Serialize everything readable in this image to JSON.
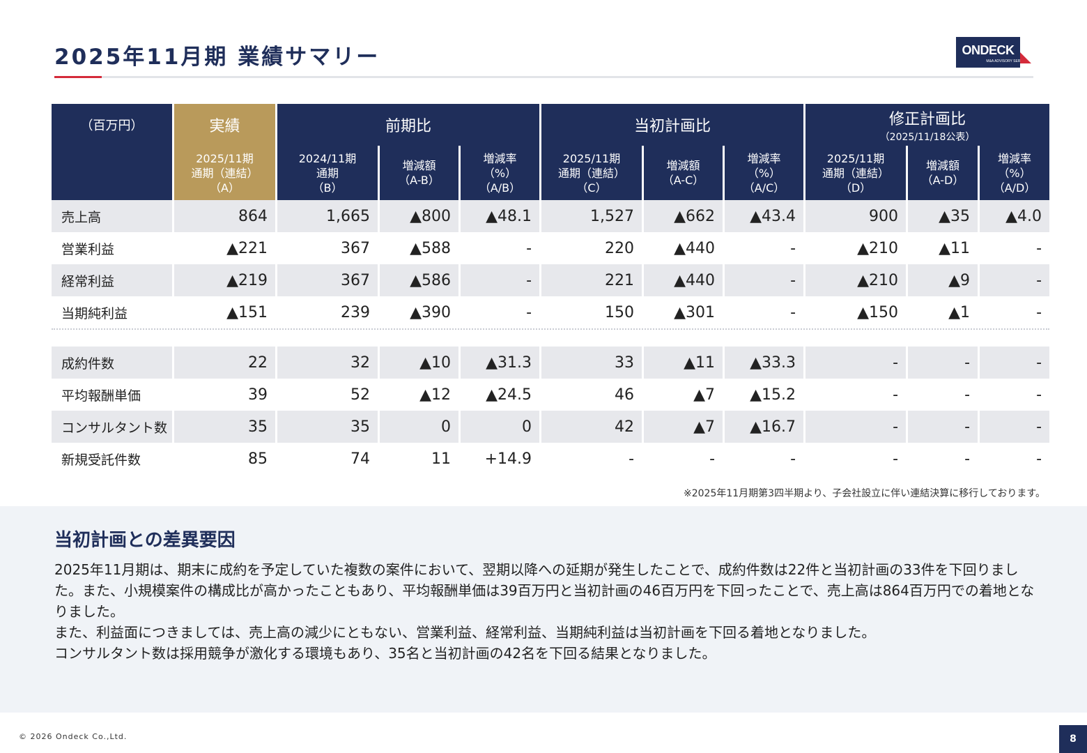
{
  "page": {
    "title": "2025年11月期 業績サマリー",
    "logo_text": "ONDECK",
    "logo_tagline": "M&A ADVISORY SERVICE",
    "copyright": "© 2026 Ondeck Co.,Ltd.",
    "page_number": "8"
  },
  "table": {
    "unit": "（百万円）",
    "groups": {
      "actual": "実績",
      "yoy": "前期比",
      "initial_plan": "当初計画比",
      "revised_plan": "修正計画比",
      "revised_plan_note": "（2025/11/18公表）"
    },
    "subheaders": [
      [
        "2025/11期",
        "通期（連結）",
        "（A）"
      ],
      [
        "2024/11期",
        "通期",
        "（B）"
      ],
      [
        "増減額",
        "（A-B）"
      ],
      [
        "増減率",
        "（%）",
        "（A/B）"
      ],
      [
        "2025/11期",
        "通期（連結）",
        "（C）"
      ],
      [
        "増減額",
        "（A-C）"
      ],
      [
        "増減率",
        "（%）",
        "（A/C）"
      ],
      [
        "2025/11期",
        "通期（連結）",
        "（D）"
      ],
      [
        "増減額",
        "（A-D）"
      ],
      [
        "増減率",
        "（%）",
        "（A/D）"
      ]
    ],
    "financial_rows": [
      {
        "label": "売上高",
        "values": [
          "864",
          "1,665",
          "▲800",
          "▲48.1",
          "1,527",
          "▲662",
          "▲43.4",
          "900",
          "▲35",
          "▲4.0"
        ]
      },
      {
        "label": "営業利益",
        "values": [
          "▲221",
          "367",
          "▲588",
          "-",
          "220",
          "▲440",
          "-",
          "▲210",
          "▲11",
          "-"
        ]
      },
      {
        "label": "経常利益",
        "values": [
          "▲219",
          "367",
          "▲586",
          "-",
          "221",
          "▲440",
          "-",
          "▲210",
          "▲9",
          "-"
        ]
      },
      {
        "label": "当期純利益",
        "values": [
          "▲151",
          "239",
          "▲390",
          "-",
          "150",
          "▲301",
          "-",
          "▲150",
          "▲1",
          "-"
        ]
      }
    ],
    "kpi_rows": [
      {
        "label": "成約件数",
        "values": [
          "22",
          "32",
          "▲10",
          "▲31.3",
          "33",
          "▲11",
          "▲33.3",
          "-",
          "-",
          "-"
        ]
      },
      {
        "label": "平均報酬単価",
        "values": [
          "39",
          "52",
          "▲12",
          "▲24.5",
          "46",
          "▲7",
          "▲15.2",
          "-",
          "-",
          "-"
        ]
      },
      {
        "label": "コンサルタント数",
        "values": [
          "35",
          "35",
          "0",
          "0",
          "42",
          "▲7",
          "▲16.7",
          "-",
          "-",
          "-"
        ]
      },
      {
        "label": "新規受託件数",
        "values": [
          "85",
          "74",
          "11",
          "+14.9",
          "-",
          "-",
          "-",
          "-",
          "-",
          "-"
        ]
      }
    ],
    "note": "※2025年11月期第3四半期より、子会社設立に伴い連結決算に移行しております。"
  },
  "analysis": {
    "heading": "当初計画との差異要因",
    "paragraphs": [
      "2025年11月期は、期末に成約を予定していた複数の案件において、翌期以降への延期が発生したことで、成約件数は22件と当初計画の33件を下回りました。また、小規模案件の構成比が高かったこともあり、平均報酬単価は39百万円と当初計画の46百万円を下回ったことで、売上高は864百万円での着地となりました。",
      "また、利益面につきましては、売上高の減少にともない、営業利益、経常利益、当期純利益は当初計画を下回る着地となりました。",
      "コンサルタント数は採用競争が激化する環境もあり、35名と当初計画の42名を下回る結果となりました。"
    ]
  },
  "colors": {
    "navy": "#1f2e5a",
    "gold": "#b99a5b",
    "accent_red": "#d42b3a",
    "row_shade": "#e7e8ec",
    "panel_bg": "#f0f3f7"
  }
}
